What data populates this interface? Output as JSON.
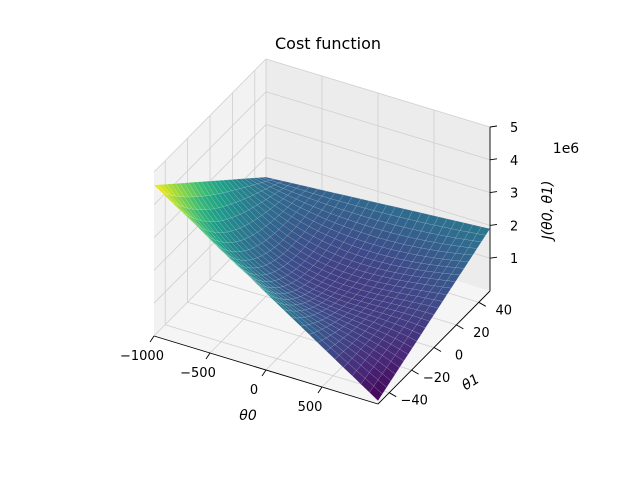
{
  "chart_data": {
    "type": "surface",
    "title": "Cost function",
    "xlabel": "θ0",
    "ylabel": "θ1",
    "zlabel": "J(θ0, θ1)",
    "z_offset_text": "1e6",
    "colormap": "viridis",
    "xlim": [
      -1000,
      1000
    ],
    "ylim": [
      -50,
      50
    ],
    "zlim": [
      0,
      5
    ],
    "x_ticks": [
      -1000,
      -500,
      0,
      500
    ],
    "x_tick_labels": [
      "−1000",
      "−500",
      "0",
      "500"
    ],
    "y_ticks": [
      -40,
      -20,
      0,
      20,
      40
    ],
    "y_tick_labels": [
      "−40",
      "−20",
      "0",
      "20",
      "40"
    ],
    "z_ticks": [
      1,
      2,
      3,
      4,
      5
    ],
    "z_tick_labels": [
      "1",
      "2",
      "3",
      "4",
      "5"
    ],
    "grid": true,
    "surface_samples": [
      {
        "theta0": -1000,
        "theta1": -50,
        "J": 4.6
      },
      {
        "theta0": -1000,
        "theta1": 50,
        "J": 1.4
      },
      {
        "theta0": 1000,
        "theta1": -50,
        "J": 0.1
      },
      {
        "theta0": 1000,
        "theta1": 50,
        "J": 1.9
      },
      {
        "theta0": 0,
        "theta1": 0,
        "J": 0.1
      }
    ]
  }
}
